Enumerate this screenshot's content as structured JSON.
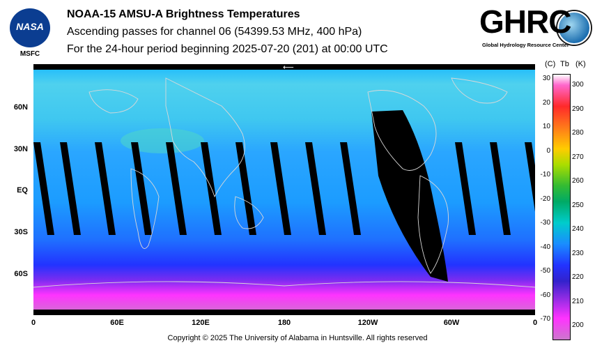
{
  "header": {
    "title": "NOAA-15 AMSU-A Brightness Temperatures",
    "subtitle": "Ascending passes for channel 06 (54399.53 MHz, 400 hPa)",
    "period": "For the 24-hour period beginning 2025-07-20 (201) at 00:00 UTC"
  },
  "logos": {
    "left_text": "NASA",
    "left_caption": "MSFC",
    "right_text": "GHRC",
    "right_caption": "Global Hydrology Resource Center"
  },
  "map": {
    "lat_labels": [
      "60N",
      "30N",
      "EQ",
      "30S",
      "60S"
    ],
    "lon_labels": [
      "0",
      "60E",
      "120E",
      "180",
      "120W",
      "60W",
      "0"
    ],
    "colors": {
      "cold": "#ff33ff",
      "cool": "#2233ff",
      "mid": "#1a8cff",
      "warm": "#00cccc",
      "nodata": "#000000",
      "coast": "#d8d8d8"
    }
  },
  "colorbar": {
    "unit_c": "(C)",
    "unit_tb": "Tb",
    "unit_k": "(K)",
    "celsius_ticks": [
      "30",
      "20",
      "10",
      "0",
      "-10",
      "-20",
      "-30",
      "-40",
      "-50",
      "-60",
      "-70"
    ],
    "kelvin_ticks": [
      "300",
      "290",
      "280",
      "270",
      "260",
      "250",
      "240",
      "230",
      "220",
      "210",
      "200"
    ]
  },
  "footer": {
    "copyright": "Copyright © 2025 The University of Alabama in Huntsville.  All rights reserved"
  }
}
